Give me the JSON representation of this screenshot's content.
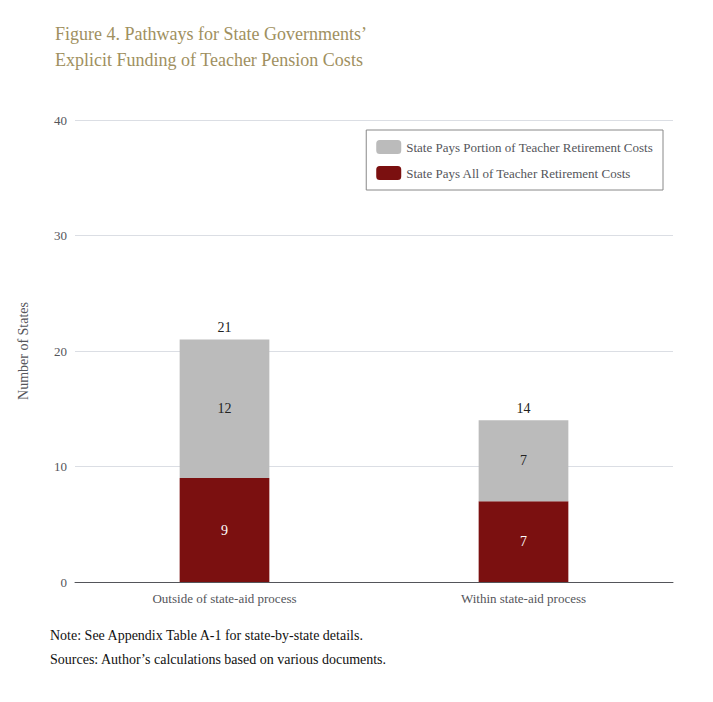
{
  "chart_data": {
    "type": "bar",
    "title": "Figure 4. Pathways for State Governments’\nExplicit Funding of Teacher Pension Costs",
    "categories": [
      "Outside of state-aid process",
      "Within state-aid process"
    ],
    "series": [
      {
        "name": "State Pays All of Teacher Retirement Costs",
        "color": "#7B1010",
        "values": [
          9,
          7
        ]
      },
      {
        "name": "State Pays Portion of Teacher Retirement Costs",
        "color": "#BBBBBB",
        "values": [
          12,
          7
        ]
      }
    ],
    "total_values": [
      21,
      14
    ],
    "stacked": true,
    "data_labels": true,
    "ylabel": "Number of States",
    "ylim": [
      0,
      40
    ],
    "yticks": [
      0,
      10,
      20,
      30,
      40
    ],
    "grid": true,
    "legend": "upper right",
    "annotations": [
      "Note: See Appendix Table A-1 for state-by-state details.",
      "Sources: Author’s calculations based on various documents."
    ]
  }
}
